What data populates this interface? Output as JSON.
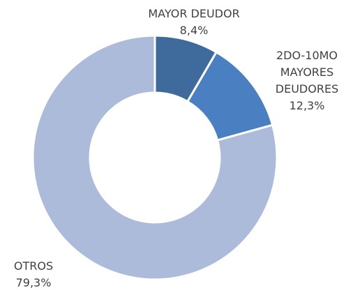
{
  "chart_data": {
    "type": "donut",
    "categories": [
      "MAYOR DEUDOR",
      "2DO-10MO MAYORES DEUDORES",
      "OTROS"
    ],
    "values": [
      8.4,
      12.3,
      79.3
    ],
    "value_labels": [
      "8,4%",
      "12,3%",
      "79,3%"
    ],
    "colors": [
      "#3e6a9c",
      "#4a80c2",
      "#abbbd9"
    ]
  }
}
